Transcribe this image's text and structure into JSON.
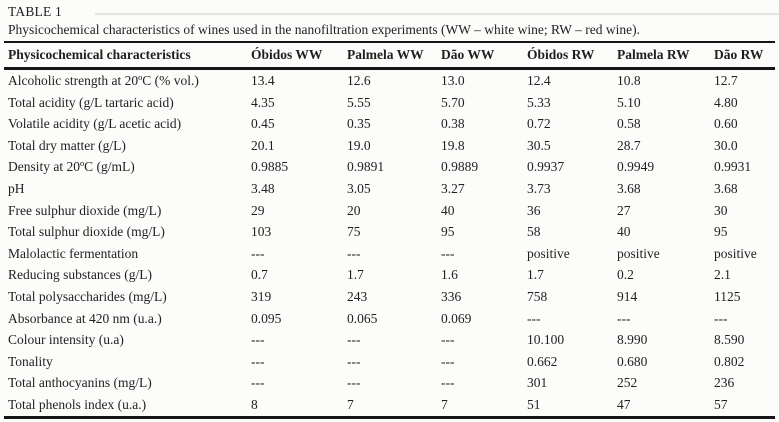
{
  "heading": {
    "label": "TABLE 1"
  },
  "caption": "Physicochemical characteristics of wines used in the nanofiltration experiments (WW – white wine; RW – red wine).",
  "table": {
    "columns": [
      "Physicochemical characteristics",
      "Óbidos WW",
      "Palmela WW",
      "Dão WW",
      "Óbidos RW",
      "Palmela RW",
      "Dão RW"
    ],
    "rows": [
      [
        "Alcoholic strength at 20ºC (% vol.)",
        "13.4",
        "12.6",
        "13.0",
        "12.4",
        "10.8",
        "12.7"
      ],
      [
        "Total acidity (g/L tartaric acid)",
        "4.35",
        "5.55",
        "5.70",
        "5.33",
        "5.10",
        "4.80"
      ],
      [
        "Volatile acidity (g/L acetic acid)",
        "0.45",
        "0.35",
        "0.38",
        "0.72",
        "0.58",
        "0.60"
      ],
      [
        "Total dry matter (g/L)",
        "20.1",
        "19.0",
        "19.8",
        "30.5",
        "28.7",
        "30.0"
      ],
      [
        "Density at 20ºC (g/mL)",
        "0.9885",
        "0.9891",
        "0.9889",
        "0.9937",
        "0.9949",
        "0.9931"
      ],
      [
        "pH",
        "3.48",
        "3.05",
        "3.27",
        "3.73",
        "3.68",
        "3.68"
      ],
      [
        "Free sulphur dioxide (mg/L)",
        "29",
        "20",
        "40",
        "36",
        "27",
        "30"
      ],
      [
        "Total sulphur dioxide (mg/L)",
        "103",
        "75",
        "95",
        "58",
        "40",
        "95"
      ],
      [
        "Malolactic fermentation",
        "---",
        "---",
        "---",
        "positive",
        "positive",
        "positive"
      ],
      [
        "Reducing substances (g/L)",
        "0.7",
        "1.7",
        "1.6",
        "1.7",
        "0.2",
        "2.1"
      ],
      [
        "Total polysaccharides (mg/L)",
        "319",
        "243",
        "336",
        "758",
        "914",
        "1125"
      ],
      [
        "Absorbance at 420 nm (u.a.)",
        "0.095",
        "0.065",
        "0.069",
        "---",
        "---",
        "---"
      ],
      [
        "Colour intensity (u.a)",
        "---",
        "---",
        "---",
        "10.100",
        "8.990",
        "8.590"
      ],
      [
        "Tonality",
        "---",
        "---",
        "---",
        "0.662",
        "0.680",
        "0.802"
      ],
      [
        "Total anthocyanins (mg/L)",
        "---",
        "---",
        "---",
        "301",
        "252",
        "236"
      ],
      [
        "Total phenols index (u.a.)",
        "8",
        "7",
        "7",
        "51",
        "47",
        "57"
      ]
    ]
  },
  "colors": {
    "text": "#1f1f1f",
    "rule": "#161616",
    "background": "#fcfcfb"
  },
  "chart_data": {
    "type": "table",
    "title": "TABLE 1",
    "caption": "Physicochemical characteristics of wines used in the nanofiltration experiments (WW – white wine; RW – red wine)."
  }
}
